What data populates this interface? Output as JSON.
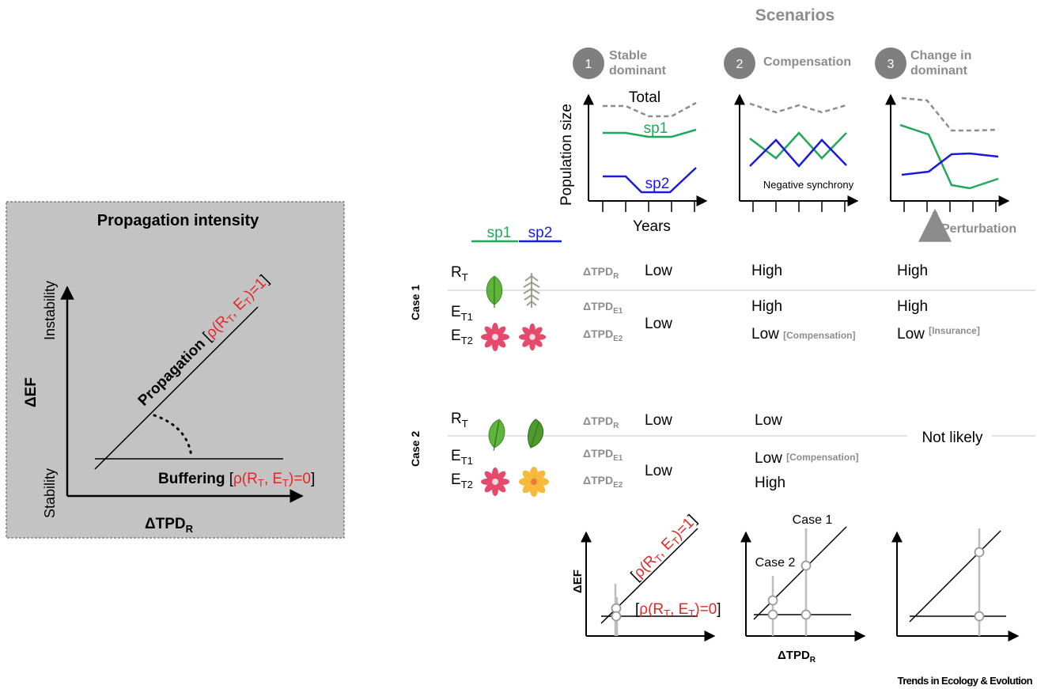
{
  "left_panel": {
    "title": "Propagation intensity",
    "y_axis_label": "ΔEF",
    "y_top_label": "Instability",
    "y_bottom_label": "Stability",
    "x_axis_label": "ΔTPD",
    "x_axis_sub": "R",
    "propagation_label": "Propagation",
    "propagation_rho": "ρ(R",
    "propagation_rho_tail": ", E",
    "propagation_rho_end": ")=1",
    "buffering_label": "Buffering",
    "buffering_rho": "ρ(R",
    "buffering_rho_tail": ", E",
    "buffering_rho_end": ")=0",
    "sub_t": "T"
  },
  "scenarios": {
    "title": "Scenarios",
    "s1": {
      "number": "1",
      "line1": "Stable",
      "line2": "dominant"
    },
    "s2": {
      "number": "2",
      "line1": "Compensation"
    },
    "s3": {
      "number": "3",
      "line1": "Change in",
      "line2": "dominant"
    },
    "y_label": "Population size",
    "x_label": "Years",
    "total_label": "Total",
    "sp1_label": "sp1",
    "sp2_label": "sp2",
    "negative_sync": "Negative synchrony",
    "perturbation": "Perturbation"
  },
  "legend": {
    "sp1": "sp1",
    "sp2": "sp2",
    "sp1_color": "#1fa85a",
    "sp2_color": "#1a1adb"
  },
  "case1": {
    "label": "Case 1",
    "rt": "R",
    "rt_sub": "T",
    "et1": "E",
    "et1_sub": "T1",
    "et2": "E",
    "et2_sub": "T2",
    "tpd_r": "ΔTPD",
    "tpd_r_sub": "R",
    "tpd_e1": "ΔTPD",
    "tpd_e1_sub": "E1",
    "tpd_e2": "ΔTPD",
    "tpd_e2_sub": "E2",
    "s1_r": "Low",
    "s1_e": "Low",
    "s2_r": "High",
    "s2_e1": "High",
    "s2_e2": "Low",
    "s2_e2_note": "[Compensation]",
    "s3_r": "High",
    "s3_e1": "High",
    "s3_e2": "Low",
    "s3_e2_note": "[Insurance]"
  },
  "case2": {
    "label": "Case 2",
    "rt": "R",
    "rt_sub": "T",
    "et1": "E",
    "et1_sub": "T1",
    "et2": "E",
    "et2_sub": "T2",
    "tpd_r": "ΔTPD",
    "tpd_r_sub": "R",
    "tpd_e1": "ΔTPD",
    "tpd_e1_sub": "E1",
    "tpd_e2": "ΔTPD",
    "tpd_e2_sub": "E2",
    "s1_r": "Low",
    "s1_e": "Low",
    "s2_r": "Low",
    "s2_e1": "Low",
    "s2_e1_note": "[Compensation]",
    "s2_e2": "High",
    "s3": "Not likely"
  },
  "bottom": {
    "y_label": "ΔEF",
    "x_label": "ΔTPD",
    "x_sub": "R",
    "rho1": "ρ(R",
    "rho1_tail": ", E",
    "rho1_end": ")=1",
    "rho0": "ρ(R",
    "rho0_tail": ", E",
    "rho0_end": ")=0",
    "sub_t": "T",
    "case1": "Case 1",
    "case2": "Case 2",
    "bracket_open": "[",
    "bracket_close": "]"
  },
  "footer": "Trends in Ecology & Evolution"
}
